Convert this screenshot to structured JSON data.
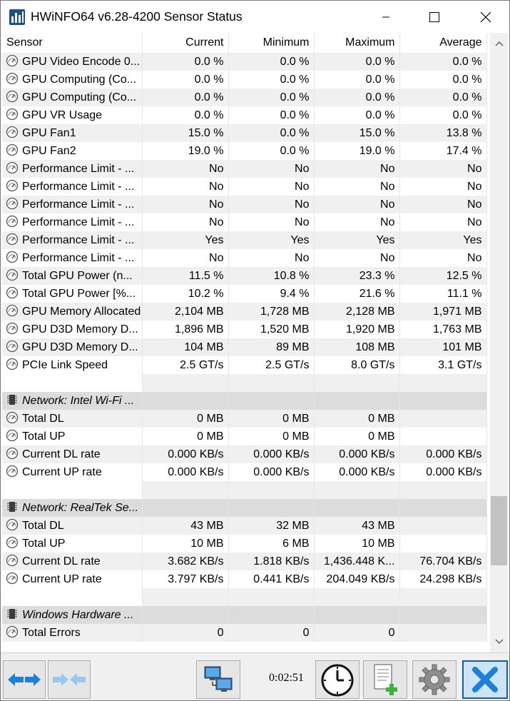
{
  "window": {
    "title": "HWiNFO64 v6.28-4200 Sensor Status",
    "minimize_label": "Minimize",
    "maximize_label": "Maximize",
    "close_label": "Close"
  },
  "table": {
    "headers": [
      "Sensor",
      "Current",
      "Minimum",
      "Maximum",
      "Average"
    ],
    "rows": [
      {
        "type": "sensor",
        "name": "GPU Video Encode 0...",
        "current": "0.0 %",
        "minimum": "0.0 %",
        "maximum": "0.0 %",
        "average": "0.0 %"
      },
      {
        "type": "sensor",
        "name": "GPU Computing (Co...",
        "current": "0.0 %",
        "minimum": "0.0 %",
        "maximum": "0.0 %",
        "average": "0.0 %"
      },
      {
        "type": "sensor",
        "name": "GPU Computing (Co...",
        "current": "0.0 %",
        "minimum": "0.0 %",
        "maximum": "0.0 %",
        "average": "0.0 %"
      },
      {
        "type": "sensor",
        "name": "GPU VR Usage",
        "current": "0.0 %",
        "minimum": "0.0 %",
        "maximum": "0.0 %",
        "average": "0.0 %"
      },
      {
        "type": "sensor",
        "name": "GPU Fan1",
        "current": "15.0 %",
        "minimum": "0.0 %",
        "maximum": "15.0 %",
        "average": "13.8 %"
      },
      {
        "type": "sensor",
        "name": "GPU Fan2",
        "current": "19.0 %",
        "minimum": "0.0 %",
        "maximum": "19.0 %",
        "average": "17.4 %"
      },
      {
        "type": "sensor",
        "name": "Performance Limit - ...",
        "current": "No",
        "minimum": "No",
        "maximum": "No",
        "average": "No"
      },
      {
        "type": "sensor",
        "name": "Performance Limit - ...",
        "current": "No",
        "minimum": "No",
        "maximum": "No",
        "average": "No"
      },
      {
        "type": "sensor",
        "name": "Performance Limit - ...",
        "current": "No",
        "minimum": "No",
        "maximum": "No",
        "average": "No"
      },
      {
        "type": "sensor",
        "name": "Performance Limit - ...",
        "current": "No",
        "minimum": "No",
        "maximum": "No",
        "average": "No"
      },
      {
        "type": "sensor",
        "name": "Performance Limit - ...",
        "current": "Yes",
        "minimum": "Yes",
        "maximum": "Yes",
        "average": "Yes"
      },
      {
        "type": "sensor",
        "name": "Performance Limit - ...",
        "current": "No",
        "minimum": "No",
        "maximum": "No",
        "average": "No"
      },
      {
        "type": "sensor",
        "name": "Total GPU Power (n...",
        "current": "11.5 %",
        "minimum": "10.8 %",
        "maximum": "23.3 %",
        "average": "12.5 %"
      },
      {
        "type": "sensor",
        "name": "Total GPU Power [%...",
        "current": "10.2 %",
        "minimum": "9.4 %",
        "maximum": "21.6 %",
        "average": "11.1 %"
      },
      {
        "type": "sensor",
        "name": "GPU Memory Allocated",
        "current": "2,104 MB",
        "minimum": "1,728 MB",
        "maximum": "2,128 MB",
        "average": "1,971 MB"
      },
      {
        "type": "sensor",
        "name": "GPU D3D Memory D...",
        "current": "1,896 MB",
        "minimum": "1,520 MB",
        "maximum": "1,920 MB",
        "average": "1,763 MB"
      },
      {
        "type": "sensor",
        "name": "GPU D3D Memory D...",
        "current": "104 MB",
        "minimum": "89 MB",
        "maximum": "108 MB",
        "average": "101 MB"
      },
      {
        "type": "sensor",
        "name": "PCIe Link Speed",
        "current": "2.5 GT/s",
        "minimum": "2.5 GT/s",
        "maximum": "8.0 GT/s",
        "average": "3.1 GT/s"
      },
      {
        "type": "blank"
      },
      {
        "type": "group",
        "name": "Network: Intel Wi-Fi ..."
      },
      {
        "type": "sensor",
        "name": "Total DL",
        "current": "0 MB",
        "minimum": "0 MB",
        "maximum": "0 MB",
        "average": ""
      },
      {
        "type": "sensor",
        "name": "Total UP",
        "current": "0 MB",
        "minimum": "0 MB",
        "maximum": "0 MB",
        "average": ""
      },
      {
        "type": "sensor",
        "name": "Current DL rate",
        "current": "0.000 KB/s",
        "minimum": "0.000 KB/s",
        "maximum": "0.000 KB/s",
        "average": "0.000 KB/s"
      },
      {
        "type": "sensor",
        "name": "Current UP rate",
        "current": "0.000 KB/s",
        "minimum": "0.000 KB/s",
        "maximum": "0.000 KB/s",
        "average": "0.000 KB/s"
      },
      {
        "type": "blank"
      },
      {
        "type": "group",
        "name": "Network: RealTek Se..."
      },
      {
        "type": "sensor",
        "name": "Total DL",
        "current": "43 MB",
        "minimum": "32 MB",
        "maximum": "43 MB",
        "average": ""
      },
      {
        "type": "sensor",
        "name": "Total UP",
        "current": "10 MB",
        "minimum": "6 MB",
        "maximum": "10 MB",
        "average": ""
      },
      {
        "type": "sensor",
        "name": "Current DL rate",
        "current": "3.682 KB/s",
        "minimum": "1.818 KB/s",
        "maximum": "1,436.448 K...",
        "average": "76.704 KB/s"
      },
      {
        "type": "sensor",
        "name": "Current UP rate",
        "current": "3.797 KB/s",
        "minimum": "0.441 KB/s",
        "maximum": "204.049 KB/s",
        "average": "24.298 KB/s"
      },
      {
        "type": "blank"
      },
      {
        "type": "group",
        "name": "Windows Hardware ..."
      },
      {
        "type": "sensor",
        "name": "Total Errors",
        "current": "0",
        "minimum": "0",
        "maximum": "0",
        "average": ""
      }
    ]
  },
  "scrollbar": {
    "position_fraction": 0.87,
    "visible_fraction": 0.12
  },
  "toolbar": {
    "elapsed_time": "0:02:51",
    "buttons": [
      "navigate-next",
      "navigate-prev",
      "network",
      "clock",
      "add-report",
      "settings",
      "close"
    ]
  },
  "colors": {
    "accent_blue": "#1e7fd6",
    "close_button_bg": "#cde4f7",
    "row_alt": "#f0f0f0",
    "group_row": "#dcdcdc"
  }
}
